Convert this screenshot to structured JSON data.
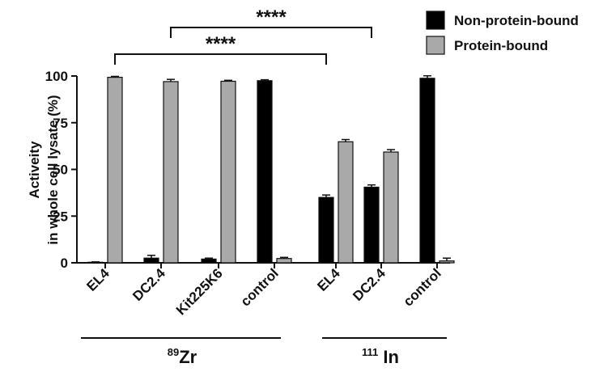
{
  "chart_data": {
    "type": "bar",
    "ylabel": [
      "Activeity",
      "in whole cell lysate (%)"
    ],
    "ylim": [
      0,
      100
    ],
    "yticks": [
      0,
      25,
      50,
      75,
      100
    ],
    "categories": [
      "EL4",
      "DC2.4",
      "Kit225K6",
      "control",
      "EL4",
      "DC2.4",
      "control"
    ],
    "groups": [
      {
        "label_sup": "89",
        "label": "Zr",
        "from": 0,
        "to": 3
      },
      {
        "label_sup": "111",
        "label": " In",
        "from": 4,
        "to": 6
      }
    ],
    "series": [
      {
        "name": "Non-protein-bound",
        "color": "#000000",
        "values": [
          0.3,
          2.5,
          2.0,
          97.5,
          35.0,
          40.5,
          98.8
        ],
        "errors": [
          0.2,
          1.5,
          0.5,
          0.5,
          1.3,
          1.2,
          1.3
        ]
      },
      {
        "name": "Protein-bound",
        "color": "#a9a9a9",
        "values": [
          99.3,
          97.0,
          97.2,
          2.3,
          64.8,
          59.3,
          1.0
        ],
        "errors": [
          0.5,
          1.2,
          0.5,
          0.6,
          1.2,
          1.3,
          1.5
        ]
      }
    ],
    "significance": [
      {
        "label": "****",
        "from_category": 0,
        "from_series": 1,
        "to_category": 4,
        "to_series": 0
      },
      {
        "label": "****",
        "from_category": 1,
        "from_series": 1,
        "to_category": 5,
        "to_series": 0
      }
    ],
    "legend_position": "top-right",
    "grid": false
  }
}
